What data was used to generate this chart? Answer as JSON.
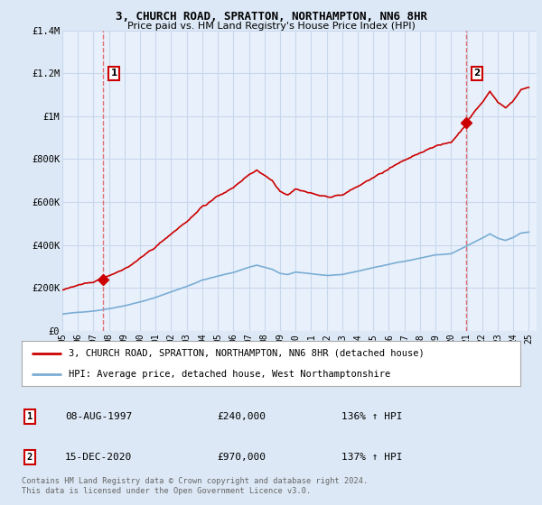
{
  "title": "3, CHURCH ROAD, SPRATTON, NORTHAMPTON, NN6 8HR",
  "subtitle": "Price paid vs. HM Land Registry's House Price Index (HPI)",
  "ylim": [
    0,
    1400000
  ],
  "yticks": [
    0,
    200000,
    400000,
    600000,
    800000,
    1000000,
    1200000,
    1400000
  ],
  "ytick_labels": [
    "£0",
    "£200K",
    "£400K",
    "£600K",
    "£800K",
    "£1M",
    "£1.2M",
    "£1.4M"
  ],
  "bg_color": "#dce8f5",
  "plot_bg_color": "#e8f0fb",
  "grid_color": "#c8d8ec",
  "sale1_year": 1997.6,
  "sale1_price": 240000,
  "sale2_year": 2020.96,
  "sale2_price": 970000,
  "red_line_color": "#cc0000",
  "blue_line_color": "#7aadd4",
  "legend_label_red": "3, CHURCH ROAD, SPRATTON, NORTHAMPTON, NN6 8HR (detached house)",
  "legend_label_blue": "HPI: Average price, detached house, West Northamptonshire",
  "footer": "Contains HM Land Registry data © Crown copyright and database right 2024.\nThis data is licensed under the Open Government Licence v3.0.",
  "sale1_label": "1",
  "sale2_label": "2",
  "sale1_date": "08-AUG-1997",
  "sale1_amount": "£240,000",
  "sale1_hpi": "136% ↑ HPI",
  "sale2_date": "15-DEC-2020",
  "sale2_amount": "£970,000",
  "sale2_hpi": "137% ↑ HPI"
}
